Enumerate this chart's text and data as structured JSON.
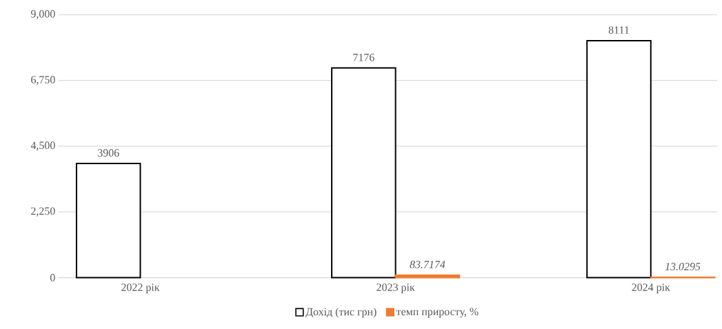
{
  "chart_data": {
    "type": "bar",
    "categories": [
      "2022 рік",
      "2023 рік",
      "2024 рік"
    ],
    "series": [
      {
        "name": "Дохід (тис грн)",
        "color": "#ffffff",
        "values": [
          3906,
          7176,
          8111
        ]
      },
      {
        "name": "темп приросту, %",
        "color": "#ed7d31",
        "values": [
          null,
          83.7174,
          13.0295
        ]
      }
    ],
    "ylim": [
      0,
      9000
    ],
    "yticks": [
      {
        "value": 0,
        "label": "0"
      },
      {
        "value": 2250,
        "label": "2,250"
      },
      {
        "value": 4500,
        "label": "4,500"
      },
      {
        "value": 6750,
        "label": "6,750"
      },
      {
        "value": 9000,
        "label": "9,000"
      }
    ],
    "grid": "y",
    "legend": "bottom",
    "data_labels": true
  }
}
